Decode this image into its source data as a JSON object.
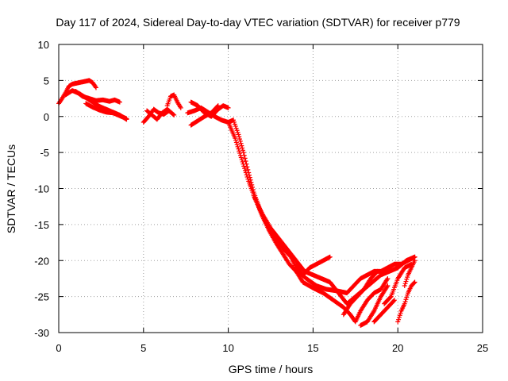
{
  "chart_data": {
    "type": "scatter",
    "title": "Day 117 of 2024, Sidereal Day-to-day VTEC variation (SDTVAR) for receiver p779",
    "xlabel": "GPS time / hours",
    "ylabel": "SDTVAR / TECUs",
    "xlim": [
      0,
      25
    ],
    "ylim": [
      -30,
      10
    ],
    "xticks": [
      "0",
      "5",
      "10",
      "15",
      "20",
      "25"
    ],
    "yticks": [
      "10",
      "5",
      "0",
      "-5",
      "-10",
      "-15",
      "-20",
      "-25",
      "-30"
    ],
    "grid": true,
    "marker": "plus",
    "color": "#ff0000",
    "series": [
      {
        "x": [
          0.0,
          0.2,
          0.4,
          0.6,
          0.8,
          1.0,
          1.2,
          1.4,
          1.6,
          1.8,
          2.0,
          2.2
        ],
        "y": [
          1.8,
          2.5,
          3.3,
          4.2,
          4.5,
          4.6,
          4.7,
          4.8,
          4.9,
          5.0,
          4.7,
          4.0
        ]
      },
      {
        "x": [
          0.4,
          0.8,
          1.2,
          1.6,
          2.0,
          2.4,
          2.8,
          3.2,
          3.6,
          4.0
        ],
        "y": [
          3.0,
          3.6,
          3.2,
          2.6,
          2.0,
          1.4,
          1.0,
          0.6,
          0.2,
          -0.4
        ]
      },
      {
        "x": [
          1.0,
          1.4,
          1.8,
          2.2,
          2.6,
          3.0,
          3.3,
          3.6
        ],
        "y": [
          3.5,
          2.8,
          2.5,
          2.2,
          2.3,
          2.1,
          2.3,
          2.0
        ]
      },
      {
        "x": [
          1.6,
          2.0,
          2.4,
          2.8,
          3.2,
          3.6,
          4.0
        ],
        "y": [
          1.8,
          1.3,
          0.9,
          0.6,
          0.5,
          0.1,
          -0.3
        ]
      },
      {
        "x": [
          5.0,
          5.3,
          5.6,
          5.9,
          6.2,
          6.5
        ],
        "y": [
          -0.8,
          0.0,
          1.0,
          0.5,
          0.3,
          0.8
        ]
      },
      {
        "x": [
          5.2,
          5.5,
          5.8,
          6.1,
          6.4,
          6.8
        ],
        "y": [
          0.8,
          0.2,
          -0.4,
          0.5,
          1.0,
          0.2
        ]
      },
      {
        "x": [
          6.4,
          6.6,
          6.8,
          7.0,
          7.2
        ],
        "y": [
          1.5,
          2.8,
          3.0,
          2.0,
          1.2
        ]
      },
      {
        "x": [
          7.8,
          8.2,
          8.6,
          9.0,
          9.4,
          9.7,
          10.0
        ],
        "y": [
          2.0,
          1.5,
          0.5,
          0.0,
          1.0,
          1.5,
          1.2
        ]
      },
      {
        "x": [
          7.6,
          8.0,
          8.4,
          8.8,
          9.2,
          9.6,
          10.0,
          10.3
        ],
        "y": [
          0.5,
          0.8,
          1.2,
          0.6,
          0.0,
          -0.5,
          -0.8,
          -0.5
        ]
      },
      {
        "x": [
          7.8,
          8.2,
          8.6,
          9.0,
          9.4
        ],
        "y": [
          -1.2,
          -0.6,
          0.0,
          0.5,
          1.5
        ]
      },
      {
        "x": [
          10.3,
          10.6,
          10.9,
          11.2,
          11.5,
          11.8,
          12.1,
          12.4,
          12.7,
          13.0,
          13.3,
          13.7,
          14.1,
          14.6,
          15.2,
          15.8,
          16.4,
          17.0,
          17.4,
          17.8,
          18.2,
          18.6,
          19.0,
          19.4,
          19.8,
          20.2,
          20.6,
          21.0
        ],
        "y": [
          -0.5,
          -2.5,
          -5.0,
          -7.8,
          -10.5,
          -12.5,
          -14.2,
          -15.5,
          -16.5,
          -17.5,
          -18.5,
          -19.5,
          -21.5,
          -22.5,
          -23.5,
          -24.0,
          -24.2,
          -24.5,
          -23.5,
          -22.5,
          -22.0,
          -21.5,
          -21.5,
          -21.0,
          -20.5,
          -20.5,
          -20.0,
          -19.5
        ]
      },
      {
        "x": [
          10.0,
          10.4,
          10.8,
          11.2,
          11.6,
          12.0,
          12.4,
          12.8,
          13.2,
          13.6,
          14.0,
          14.4,
          15.0,
          15.6,
          16.2,
          16.8,
          17.2,
          17.5,
          17.8,
          18.2,
          18.6,
          19.0,
          19.4
        ],
        "y": [
          -0.8,
          -3.0,
          -6.0,
          -9.0,
          -11.5,
          -13.8,
          -15.8,
          -17.5,
          -19.0,
          -20.5,
          -21.5,
          -23.0,
          -23.8,
          -24.5,
          -25.5,
          -26.5,
          -27.5,
          -28.5,
          -27.0,
          -25.5,
          -24.5,
          -24.0,
          -22.5
        ]
      },
      {
        "x": [
          11.5,
          12.0,
          12.5,
          13.0,
          13.5,
          14.0,
          14.5,
          15.0,
          15.5,
          16.0,
          16.5,
          17.0,
          17.5,
          18.0,
          18.5,
          19.0,
          19.5,
          20.0,
          20.5,
          21.0
        ],
        "y": [
          -11.0,
          -13.5,
          -15.5,
          -17.0,
          -18.5,
          -20.0,
          -21.5,
          -22.0,
          -22.5,
          -23.0,
          -24.5,
          -26.0,
          -25.0,
          -24.0,
          -23.0,
          -22.0,
          -21.5,
          -21.0,
          -20.0,
          -19.5
        ]
      },
      {
        "x": [
          14.0,
          14.4,
          14.8,
          15.2,
          15.6,
          16.0
        ],
        "y": [
          -20.5,
          -22.0,
          -21.0,
          -20.5,
          -20.0,
          -19.5
        ]
      },
      {
        "x": [
          16.8,
          17.2,
          17.6,
          18.0,
          18.4,
          18.8
        ],
        "y": [
          -27.5,
          -26.0,
          -25.0,
          -24.0,
          -22.5,
          -21.5
        ]
      },
      {
        "x": [
          17.8,
          18.2,
          18.6,
          19.0,
          19.4
        ],
        "y": [
          -29.0,
          -28.5,
          -27.0,
          -25.0,
          -23.5
        ]
      },
      {
        "x": [
          18.6,
          19.0,
          19.4,
          19.8
        ],
        "y": [
          -28.5,
          -27.5,
          -26.5,
          -25.5
        ]
      },
      {
        "x": [
          19.2,
          19.6,
          20.0,
          20.4,
          20.8
        ],
        "y": [
          -26.0,
          -25.0,
          -22.5,
          -21.0,
          -20.5
        ]
      },
      {
        "x": [
          20.0,
          20.2,
          20.4,
          20.6,
          20.8,
          21.0
        ],
        "y": [
          -28.5,
          -27.0,
          -26.0,
          -24.5,
          -23.5,
          -23.0
        ]
      },
      {
        "x": [
          20.4,
          20.6,
          20.8,
          21.0
        ],
        "y": [
          -23.5,
          -22.0,
          -21.0,
          -20.0
        ]
      }
    ]
  }
}
